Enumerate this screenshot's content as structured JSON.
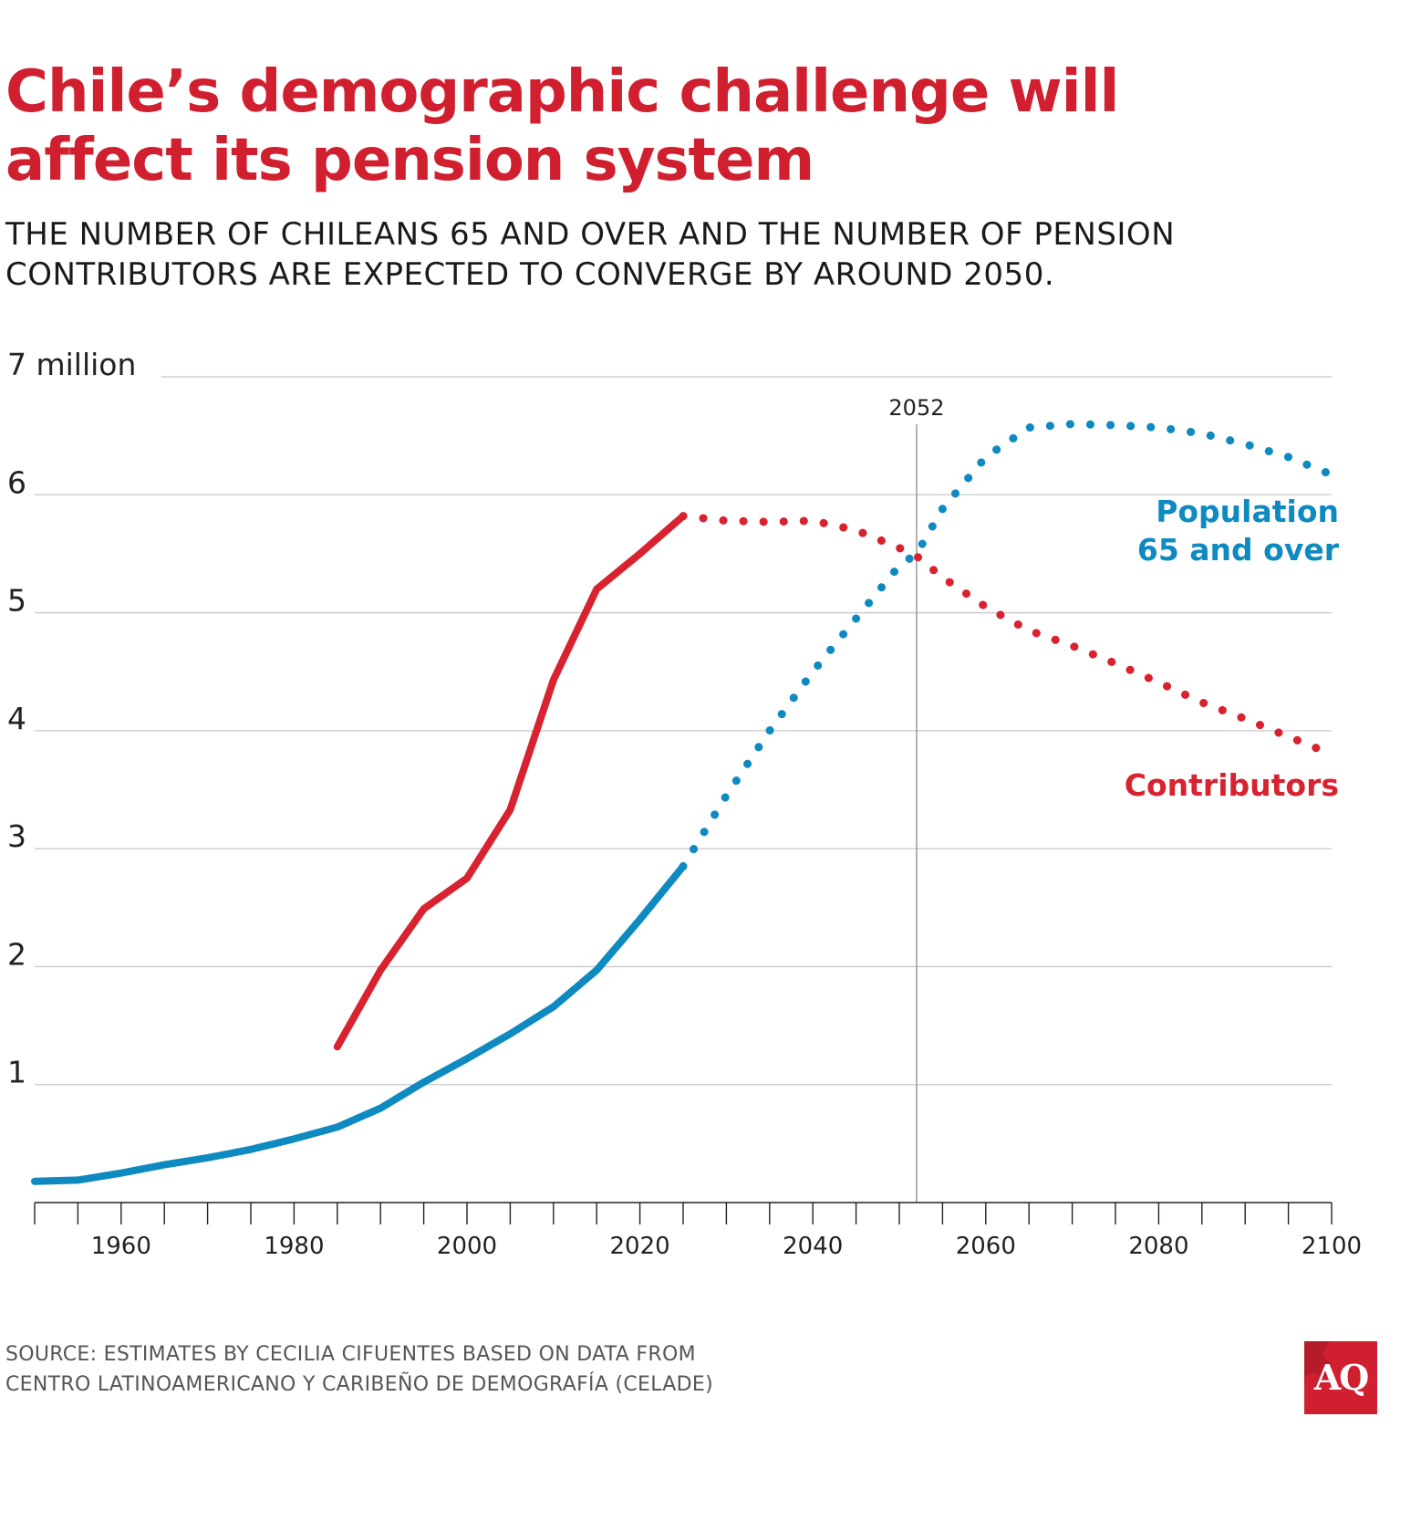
{
  "title_lines": [
    "Chile’s demographic challenge will",
    "affect its pension system"
  ],
  "subtitle_lines": [
    "THE NUMBER OF CHILEANS 65 AND OVER AND THE NUMBER OF PENSION",
    "CONTRIBUTORS ARE EXPECTED TO CONVERGE BY AROUND 2050."
  ],
  "source_lines": [
    "SOURCE: ESTIMATES BY CECILIA CIFUENTES BASED ON DATA FROM",
    " CENTRO LATINOAMERICANO Y CARIBEÑO DE DEMOGRAFÍA (CELADE)"
  ],
  "logo_text": "AQ",
  "colors": {
    "title": "#d01f2f",
    "contributors": "#d8222f",
    "population": "#0f8ac0",
    "grid": "#c8c8c8",
    "logo": "#d01f2f"
  },
  "chart_data": {
    "type": "line",
    "xlim": [
      1950,
      2100
    ],
    "ylim": [
      0,
      7
    ],
    "x_ticks": [
      1960,
      1980,
      2000,
      2020,
      2040,
      2060,
      2080,
      2100
    ],
    "x_minor_step": 5,
    "y_ticks": [
      {
        "value": 1,
        "label": "1"
      },
      {
        "value": 2,
        "label": "2"
      },
      {
        "value": 3,
        "label": "3"
      },
      {
        "value": 4,
        "label": "4"
      },
      {
        "value": 5,
        "label": "5"
      },
      {
        "value": 6,
        "label": "6"
      },
      {
        "value": 7,
        "label": "7 million"
      }
    ],
    "grid": true,
    "reference_line": {
      "x": 2052,
      "label": "2052"
    },
    "series": [
      {
        "name": "Population\n65 and over",
        "color": "#0f8ac0",
        "actual": {
          "x": [
            1950,
            1955,
            1960,
            1965,
            1970,
            1975,
            1980,
            1985,
            1990,
            1995,
            2000,
            2005,
            2010,
            2015,
            2020,
            2025
          ],
          "y": [
            0.18,
            0.19,
            0.25,
            0.32,
            0.38,
            0.45,
            0.54,
            0.64,
            0.8,
            1.02,
            1.22,
            1.43,
            1.66,
            1.97,
            2.4,
            2.85
          ]
        },
        "projected": {
          "x": [
            2025,
            2030,
            2035,
            2040,
            2045,
            2050,
            2052,
            2055,
            2060,
            2065,
            2070,
            2075,
            2080,
            2085,
            2090,
            2095,
            2100
          ],
          "y": [
            2.85,
            3.45,
            4.0,
            4.5,
            4.95,
            5.4,
            5.5,
            5.88,
            6.32,
            6.57,
            6.6,
            6.59,
            6.57,
            6.52,
            6.43,
            6.32,
            6.17
          ]
        }
      },
      {
        "name": "Contributors",
        "color": "#d8222f",
        "actual": {
          "x": [
            1985,
            1990,
            1995,
            2000,
            2005,
            2010,
            2015,
            2020,
            2025
          ],
          "y": [
            1.32,
            1.97,
            2.49,
            2.75,
            3.33,
            4.43,
            5.2,
            5.5,
            5.82
          ]
        },
        "projected": {
          "x": [
            2025,
            2030,
            2035,
            2040,
            2045,
            2050,
            2052,
            2055,
            2060,
            2065,
            2070,
            2075,
            2080,
            2085,
            2090,
            2095,
            2100
          ],
          "y": [
            5.82,
            5.78,
            5.77,
            5.78,
            5.7,
            5.55,
            5.48,
            5.3,
            5.05,
            4.85,
            4.72,
            4.57,
            4.41,
            4.24,
            4.1,
            3.95,
            3.8
          ]
        }
      }
    ]
  }
}
